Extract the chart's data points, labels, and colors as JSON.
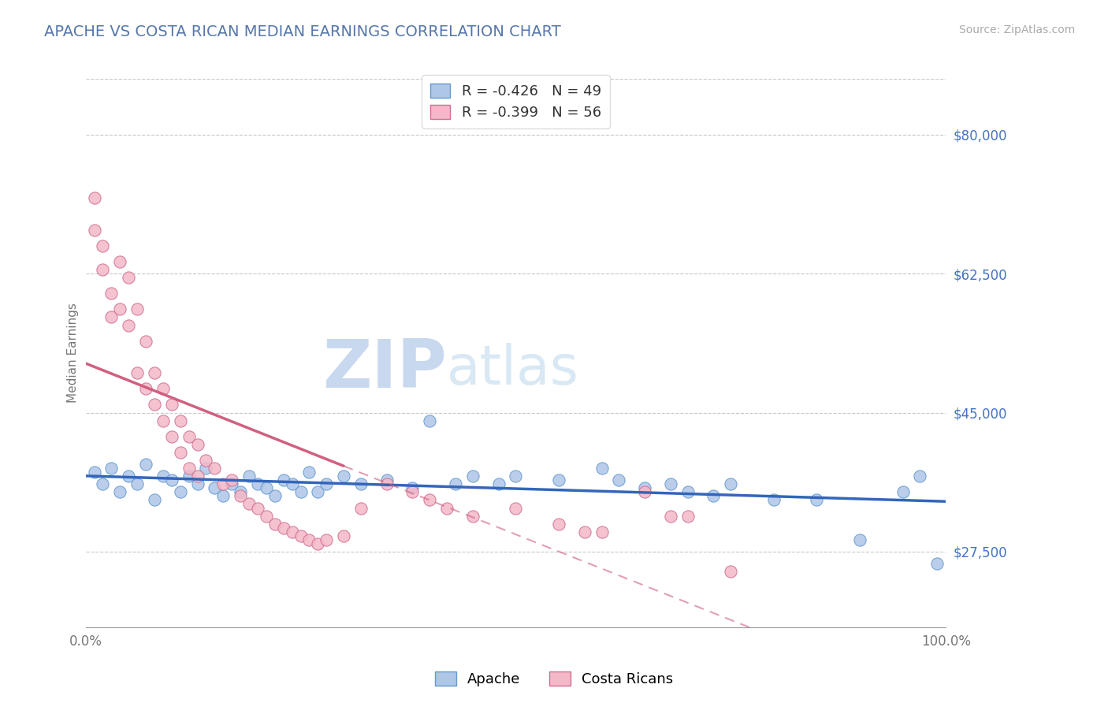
{
  "title": "APACHE VS COSTA RICAN MEDIAN EARNINGS CORRELATION CHART",
  "source": "Source: ZipAtlas.com",
  "ylabel": "Median Earnings",
  "xlim": [
    0,
    100
  ],
  "ylim": [
    18000,
    87000
  ],
  "yticks": [
    27500,
    45000,
    62500,
    80000
  ],
  "ytick_labels": [
    "$27,500",
    "$45,000",
    "$62,500",
    "$80,000"
  ],
  "bg_color": "#ffffff",
  "grid_color": "#c8c8c8",
  "apache_color": "#aec6e8",
  "apache_edge": "#6699cc",
  "costa_color": "#f4b8c8",
  "costa_edge": "#d07090",
  "apache_line_color": "#3366bb",
  "costa_line_color": "#d06080",
  "title_color": "#5577aa",
  "source_color": "#aaaaaa",
  "axis_color": "#999999",
  "ylabel_color": "#777777",
  "ytick_color": "#4472c4",
  "xtick_color": "#777777",
  "watermark_zip_color": "#c8d8ee",
  "watermark_atlas_color": "#d8e8f4",
  "apache_x": [
    1,
    2,
    3,
    4,
    5,
    6,
    7,
    8,
    9,
    10,
    11,
    12,
    13,
    14,
    15,
    16,
    17,
    18,
    19,
    20,
    21,
    22,
    23,
    24,
    25,
    26,
    27,
    28,
    30,
    32,
    35,
    38,
    40,
    43,
    45,
    48,
    50,
    55,
    60,
    62,
    65,
    68,
    70,
    73,
    75,
    80,
    85,
    90,
    95,
    97,
    99
  ],
  "apache_y": [
    37500,
    36000,
    38000,
    35000,
    37000,
    36000,
    38500,
    34000,
    37000,
    36500,
    35000,
    37000,
    36000,
    38000,
    35500,
    34500,
    36000,
    35000,
    37000,
    36000,
    35500,
    34500,
    36500,
    36000,
    35000,
    37500,
    35000,
    36000,
    37000,
    36000,
    36500,
    35500,
    44000,
    36000,
    37000,
    36000,
    37000,
    36500,
    38000,
    36500,
    35500,
    36000,
    35000,
    34500,
    36000,
    34000,
    34000,
    29000,
    35000,
    37000,
    26000
  ],
  "costa_x": [
    1,
    1,
    2,
    2,
    3,
    3,
    4,
    4,
    5,
    5,
    6,
    6,
    7,
    7,
    8,
    8,
    9,
    9,
    10,
    10,
    11,
    11,
    12,
    12,
    13,
    13,
    14,
    15,
    16,
    17,
    18,
    19,
    20,
    21,
    22,
    23,
    24,
    25,
    26,
    27,
    28,
    30,
    32,
    35,
    38,
    40,
    42,
    45,
    50,
    55,
    58,
    60,
    65,
    68,
    70,
    75
  ],
  "costa_y": [
    68000,
    72000,
    63000,
    66000,
    57000,
    60000,
    58000,
    64000,
    56000,
    62000,
    50000,
    58000,
    48000,
    54000,
    46000,
    50000,
    44000,
    48000,
    42000,
    46000,
    40000,
    44000,
    38000,
    42000,
    37000,
    41000,
    39000,
    38000,
    36000,
    36500,
    34500,
    33500,
    33000,
    32000,
    31000,
    30500,
    30000,
    29500,
    29000,
    28500,
    29000,
    29500,
    33000,
    36000,
    35000,
    34000,
    33000,
    32000,
    33000,
    31000,
    30000,
    30000,
    35000,
    32000,
    32000,
    25000
  ]
}
